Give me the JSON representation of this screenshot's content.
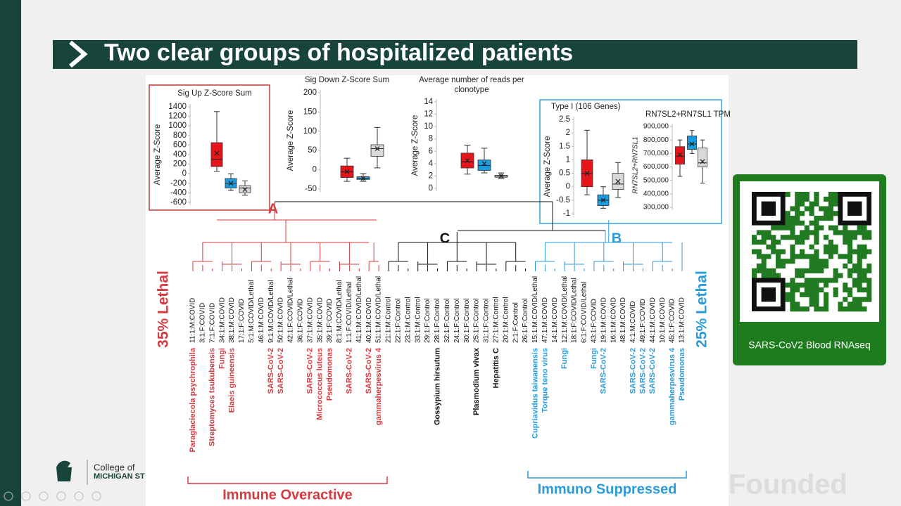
{
  "title": "Two clear groups of hospitalized patients",
  "logo": [
    "College of",
    "MICHIGAN ST"
  ],
  "watermark": "Founded",
  "qr_caption": "SARS-CoV2 Blood RNAseq",
  "chart_data": [
    {
      "type": "box",
      "title": [
        "Sig Up Z-Score Sum"
      ],
      "ylabel": "Average Z-Score",
      "ylim": [
        -600,
        1400
      ],
      "yticks": [
        1400,
        1200,
        1000,
        800,
        600,
        400,
        200,
        0,
        -200,
        -400,
        -600
      ],
      "boxes": [
        {
          "color": "#e8141b",
          "min": 50,
          "q1": 150,
          "median": 300,
          "q3": 650,
          "max": 1300,
          "mean": 430
        },
        {
          "color": "#1a9de0",
          "min": -350,
          "q1": -300,
          "median": -200,
          "q3": -100,
          "max": 0,
          "mean": -200
        },
        {
          "color": "#d9d9d9",
          "min": -450,
          "q1": -400,
          "median": -300,
          "q3": -250,
          "max": -150,
          "mean": -330
        }
      ]
    },
    {
      "type": "box",
      "title": [
        "Sig Down Z-Score Sum"
      ],
      "ylabel": "Average Z-Score",
      "ylim": [
        -50,
        200
      ],
      "yticks": [
        200,
        150,
        100,
        50,
        0,
        -50
      ],
      "boxes": [
        {
          "color": "#e8141b",
          "min": -30,
          "q1": -20,
          "median": -5,
          "q3": 10,
          "max": 30,
          "mean": -5
        },
        {
          "color": "#1a9de0",
          "min": -30,
          "q1": -25,
          "median": -22,
          "q3": -18,
          "max": -10,
          "mean": -22
        },
        {
          "color": "#d9d9d9",
          "min": 5,
          "q1": 35,
          "median": 55,
          "q3": 65,
          "max": 110,
          "mean": 55
        }
      ]
    },
    {
      "type": "box",
      "title": [
        "Average number of reads per",
        "clonotype"
      ],
      "ylabel": "Average Z-Score",
      "ylim": [
        0,
        14
      ],
      "yticks": [
        14,
        12,
        10,
        8,
        6,
        4,
        2,
        0
      ],
      "boxes": [
        {
          "color": "#e8141b",
          "min": 2.3,
          "q1": 3.3,
          "median": 4.3,
          "q3": 5.7,
          "max": 7,
          "mean": 4.5
        },
        {
          "color": "#1a9de0",
          "min": 2.5,
          "q1": 2.9,
          "median": 3.7,
          "q3": 4.6,
          "max": 6.5,
          "mean": 4
        },
        {
          "color": "#d9d9d9",
          "min": 1.6,
          "q1": 1.8,
          "median": 2,
          "q3": 2.1,
          "max": 2.5,
          "mean": 2
        }
      ]
    },
    {
      "type": "box",
      "title": [
        "Type I (106 Genes)"
      ],
      "ylabel": "Average Z-Score",
      "ylim": [
        -1,
        2.5
      ],
      "yticks": [
        2.5,
        2,
        1.5,
        1,
        0.5,
        0,
        -0.5,
        -1
      ],
      "boxes": [
        {
          "color": "#e8141b",
          "min": -0.3,
          "q1": 0,
          "median": 0.5,
          "q3": 1,
          "max": 2.1,
          "mean": 0.5
        },
        {
          "color": "#1a9de0",
          "min": -0.8,
          "q1": -0.7,
          "median": -0.5,
          "q3": -0.3,
          "max": 0,
          "mean": -0.5
        },
        {
          "color": "#d9d9d9",
          "min": -0.4,
          "q1": -0.1,
          "median": 0.1,
          "q3": 0.5,
          "max": 0.9,
          "mean": 0.2
        }
      ]
    },
    {
      "type": "box",
      "title": [
        "RN7SL2+RN7SL1 TPM"
      ],
      "ylabel": "RN7SL2+RN7SL1",
      "ylim": [
        300000,
        900000
      ],
      "yticks": [
        {
          "value": 900000,
          "label": "900,000"
        },
        {
          "value": 800000,
          "label": "800,000"
        },
        {
          "value": 700000,
          "label": "700,000"
        },
        {
          "value": 600000,
          "label": "600,000"
        },
        {
          "value": 500000,
          "label": "500,000"
        },
        {
          "value": 400000,
          "label": "400,000"
        },
        {
          "value": 300000,
          "label": "300,000"
        }
      ],
      "boxes": [
        {
          "color": "#e8141b",
          "min": 530000,
          "q1": 620000,
          "median": 680000,
          "q3": 750000,
          "max": 800000,
          "mean": 690000
        },
        {
          "color": "#1a9de0",
          "min": 700000,
          "q1": 730000,
          "median": 770000,
          "q3": 830000,
          "max": 870000,
          "mean": 770000
        },
        {
          "color": "#d9d9d9",
          "min": 480000,
          "q1": 600000,
          "median": 630000,
          "q3": 740000,
          "max": 800000,
          "mean": 640000
        }
      ]
    }
  ],
  "dendrogram": {
    "clusters": [
      {
        "label": "A",
        "color": "#d43a3f",
        "lethal": "35% Lethal",
        "bracket": "Immune Overactive",
        "leaves": [
          {
            "sample": "11:1:M:COVID",
            "taxon": "Paraglaciecola psychrophila"
          },
          {
            "sample": "3:1:F:COVID",
            "taxon": null
          },
          {
            "sample": "7:1:F:COVID",
            "taxon": "Streptomyces tsukubensis"
          },
          {
            "sample": "34:1:M:COVID",
            "taxon": "Fungi"
          },
          {
            "sample": "38:1:M:COVID",
            "taxon": "Elaeis guineensis"
          },
          {
            "sample": "17:1:F:COVID",
            "taxon": null
          },
          {
            "sample": "5:1:M:COVID/Lethal",
            "taxon": null
          },
          {
            "sample": "46:1:M:COVID",
            "taxon": null
          },
          {
            "sample": "9:1:M:COVID/Lethal",
            "taxon": "SARS-CoV-2"
          },
          {
            "sample": "50:1:M:COVID",
            "taxon": "SARS-CoV-2"
          },
          {
            "sample": "42:1:F:COVID/Lethal",
            "taxon": null
          },
          {
            "sample": "36:1:F:COVID",
            "taxon": null
          },
          {
            "sample": "37:1:M:COVID",
            "taxon": "SARS-CoV-2"
          },
          {
            "sample": "35:1:M:COVID",
            "taxon": "Micrococcus luteus"
          },
          {
            "sample": "39:1:F:COVID",
            "taxon": "Pseudomonas"
          },
          {
            "sample": "8:1:M:COVID/Lethal",
            "taxon": null
          },
          {
            "sample": "1:1:F:COVID/Lethal",
            "taxon": "SARS-CoV-2"
          },
          {
            "sample": "41:1:M:COVID/Lethal",
            "taxon": null
          },
          {
            "sample": "40:1:M:COVID",
            "taxon": "SARS-CoV-2"
          },
          {
            "sample": "51:1:M:COVID/Lethal",
            "taxon": "gammaherpesvirus 4"
          }
        ]
      },
      {
        "label": "C",
        "color": "#111111",
        "lethal": null,
        "bracket": null,
        "leaves": [
          {
            "sample": "21:1:M:Control",
            "taxon": null
          },
          {
            "sample": "22:1:F:Control",
            "taxon": null
          },
          {
            "sample": "23:1:M:Control",
            "taxon": null
          },
          {
            "sample": "33:1:M:Control",
            "taxon": null
          },
          {
            "sample": "29:1:F:Control",
            "taxon": null
          },
          {
            "sample": "28:1:F:Control",
            "taxon": "Gossypium hirsutum"
          },
          {
            "sample": "32:1:F:Control",
            "taxon": null
          },
          {
            "sample": "24:1:F:Control",
            "taxon": null
          },
          {
            "sample": "30:1:F:Control",
            "taxon": null
          },
          {
            "sample": "25:1:F:Control",
            "taxon": "Plasmodium vivax"
          },
          {
            "sample": "31:1:F:Control",
            "taxon": null
          },
          {
            "sample": "27:1:M:Control",
            "taxon": "Hepatitis C"
          },
          {
            "sample": "20:1:M:Control",
            "taxon": null
          },
          {
            "sample": "2:1:F:Control",
            "taxon": null
          },
          {
            "sample": "26:1:F:Control",
            "taxon": null
          }
        ]
      },
      {
        "label": "B",
        "color": "#2b9bd8",
        "lethal": "25% Lethal",
        "bracket": "Immuno Suppressed",
        "leaves": [
          {
            "sample": "15:1:M:COVID/Lethal",
            "taxon": "Cupriavidus taiwanensis"
          },
          {
            "sample": "47:1:M:COVID",
            "taxon": "Torque teno virus"
          },
          {
            "sample": "14:1:M:COVID",
            "taxon": null
          },
          {
            "sample": "12:1:M:COVID/Lethal",
            "taxon": "Fungi"
          },
          {
            "sample": "18:1:F:COVID/Lethal",
            "taxon": null
          },
          {
            "sample": "6:1:F:COVID/Lethal",
            "taxon": null
          },
          {
            "sample": "43:1:F:COVID",
            "taxon": "Fungi"
          },
          {
            "sample": "19:1:M:COVID",
            "taxon": "SARS-CoV-2"
          },
          {
            "sample": "16:1:M:COVID",
            "taxon": null
          },
          {
            "sample": "48:1:M:COVID",
            "taxon": null
          },
          {
            "sample": "4:1:M:COVID",
            "taxon": "SARS-CoV-2"
          },
          {
            "sample": "49:1:F:COVID",
            "taxon": "SARS-CoV-2"
          },
          {
            "sample": "44:1:M:COVID",
            "taxon": "SARS-CoV-2"
          },
          {
            "sample": "10:1:M:COVID",
            "taxon": null
          },
          {
            "sample": "45:1:F:COVID",
            "taxon": "gammaherpesvirus 4"
          },
          {
            "sample": "13:1:M:COVID",
            "taxon": "Pseudomonas"
          }
        ]
      }
    ]
  }
}
